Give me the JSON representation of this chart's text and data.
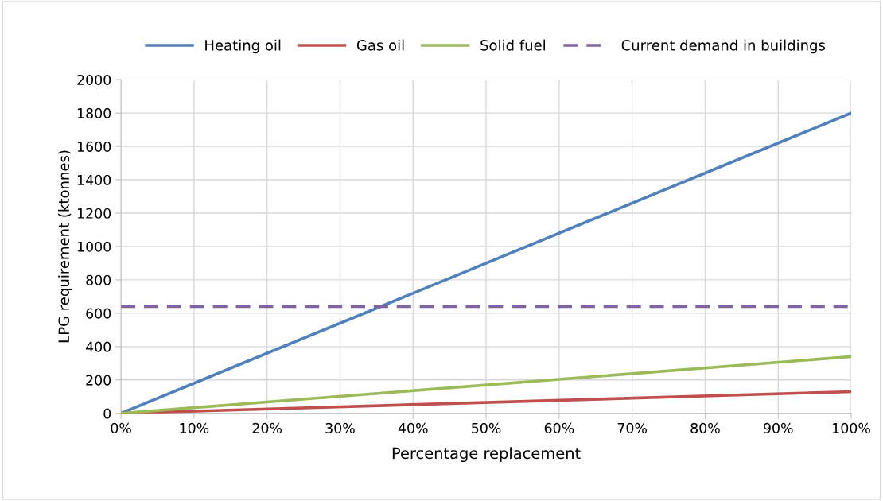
{
  "chart_data": {
    "type": "line",
    "xlabel": "Percentage replacement",
    "ylabel": "LPG requirement (ktonnes)",
    "x": [
      0,
      100
    ],
    "series": [
      {
        "name": "Heating oil",
        "color": "#4f81bd",
        "values": [
          0,
          1800
        ]
      },
      {
        "name": "Gas oil",
        "color": "#c0504d",
        "values": [
          0,
          130
        ]
      },
      {
        "name": "Solid fuel",
        "color": "#9bbb59",
        "values": [
          0,
          340
        ]
      },
      {
        "name": "Current demand in buildings",
        "color": "#8064a2",
        "values": [
          640,
          640
        ],
        "line_style": "dashed"
      }
    ],
    "xlim": [
      0,
      100
    ],
    "xticks": [
      {
        "value": 0,
        "label": "0%"
      },
      {
        "value": 10,
        "label": "10%"
      },
      {
        "value": 20,
        "label": "20%"
      },
      {
        "value": 30,
        "label": "30%"
      },
      {
        "value": 40,
        "label": "40%"
      },
      {
        "value": 50,
        "label": "50%"
      },
      {
        "value": 60,
        "label": "60%"
      },
      {
        "value": 70,
        "label": "70%"
      },
      {
        "value": 80,
        "label": "80%"
      },
      {
        "value": 90,
        "label": "90%"
      },
      {
        "value": 100,
        "label": "100%"
      }
    ],
    "ylim": [
      0,
      2000
    ],
    "yticks": [
      0,
      200,
      400,
      600,
      800,
      1000,
      1200,
      1400,
      1600,
      1800,
      2000
    ],
    "grid": true,
    "legend": "top",
    "line_style": "solid",
    "marker": "none"
  }
}
